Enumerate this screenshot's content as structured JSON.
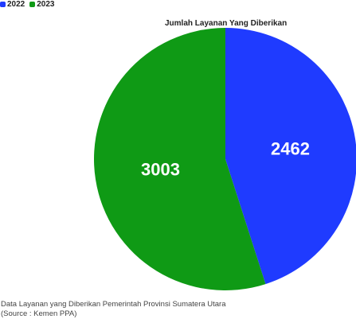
{
  "chart_data": {
    "type": "pie",
    "title": "Jumlah Layanan Yang Diberikan",
    "categories": [
      "2022",
      "2023"
    ],
    "values": [
      2462,
      3003
    ],
    "colors": [
      "#1f3bff",
      "#0f9a15"
    ],
    "legend": "top-left",
    "data_labels": [
      "2462",
      "3003"
    ]
  },
  "footnote": {
    "line1": "Data Layanan yang Diberikan Pemerintah Provinsi Sumatera Utara",
    "line2": "(Source : Kemen PPA)"
  }
}
